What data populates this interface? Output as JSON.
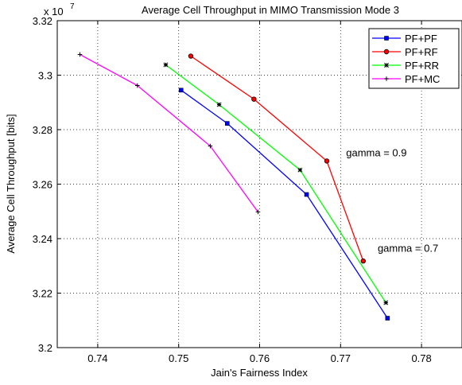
{
  "chart_data": {
    "type": "line",
    "title": "Average Cell Throughput in MIMO Transmission Mode 3",
    "xlabel": "Jain's Fairness Index",
    "ylabel": "Average Cell Throughput [bits]",
    "y_multiplier_label": "x 10",
    "y_multiplier_exponent": "7",
    "xlim": [
      0.735,
      0.785
    ],
    "ylim": [
      3.2,
      3.32
    ],
    "x_ticks": [
      0.74,
      0.75,
      0.76,
      0.77,
      0.78
    ],
    "x_tick_labels": [
      "0.74",
      "0.75",
      "0.76",
      "0.77",
      "0.78"
    ],
    "y_ticks": [
      3.2,
      3.22,
      3.24,
      3.26,
      3.28,
      3.3,
      3.32
    ],
    "y_tick_labels": [
      "3.2",
      "3.22",
      "3.24",
      "3.26",
      "3.28",
      "3.3",
      "3.32"
    ],
    "grid": true,
    "legend_position": "top-right",
    "series": [
      {
        "name": "PF+PF",
        "color": "#0000ff",
        "marker": "square",
        "points": [
          [
            0.7503,
            3.2945
          ],
          [
            0.756,
            3.2823
          ],
          [
            0.7658,
            3.2562
          ],
          [
            0.7758,
            3.2108
          ]
        ]
      },
      {
        "name": "PF+RF",
        "color": "#ff0000",
        "marker": "circle",
        "points": [
          [
            0.7515,
            3.307
          ],
          [
            0.7593,
            3.2912
          ],
          [
            0.7683,
            3.2685
          ],
          [
            0.7728,
            3.2318
          ]
        ]
      },
      {
        "name": "PF+RR",
        "color": "#00ff00",
        "marker": "asterisk",
        "points": [
          [
            0.7484,
            3.3038
          ],
          [
            0.755,
            3.2892
          ],
          [
            0.765,
            3.2652
          ],
          [
            0.7756,
            3.2165
          ]
        ]
      },
      {
        "name": "PF+MC",
        "color": "#ff00ff",
        "marker": "plus",
        "points": [
          [
            0.7378,
            3.3076
          ],
          [
            0.7449,
            3.2962
          ],
          [
            0.7539,
            3.274
          ],
          [
            0.7598,
            3.2498
          ]
        ]
      }
    ],
    "annotations": [
      {
        "text": "gamma = 0.9",
        "x": 0.7697,
        "y": 3.2685
      },
      {
        "text": "gamma = 0.7",
        "x": 0.7736,
        "y": 3.2335
      }
    ]
  }
}
